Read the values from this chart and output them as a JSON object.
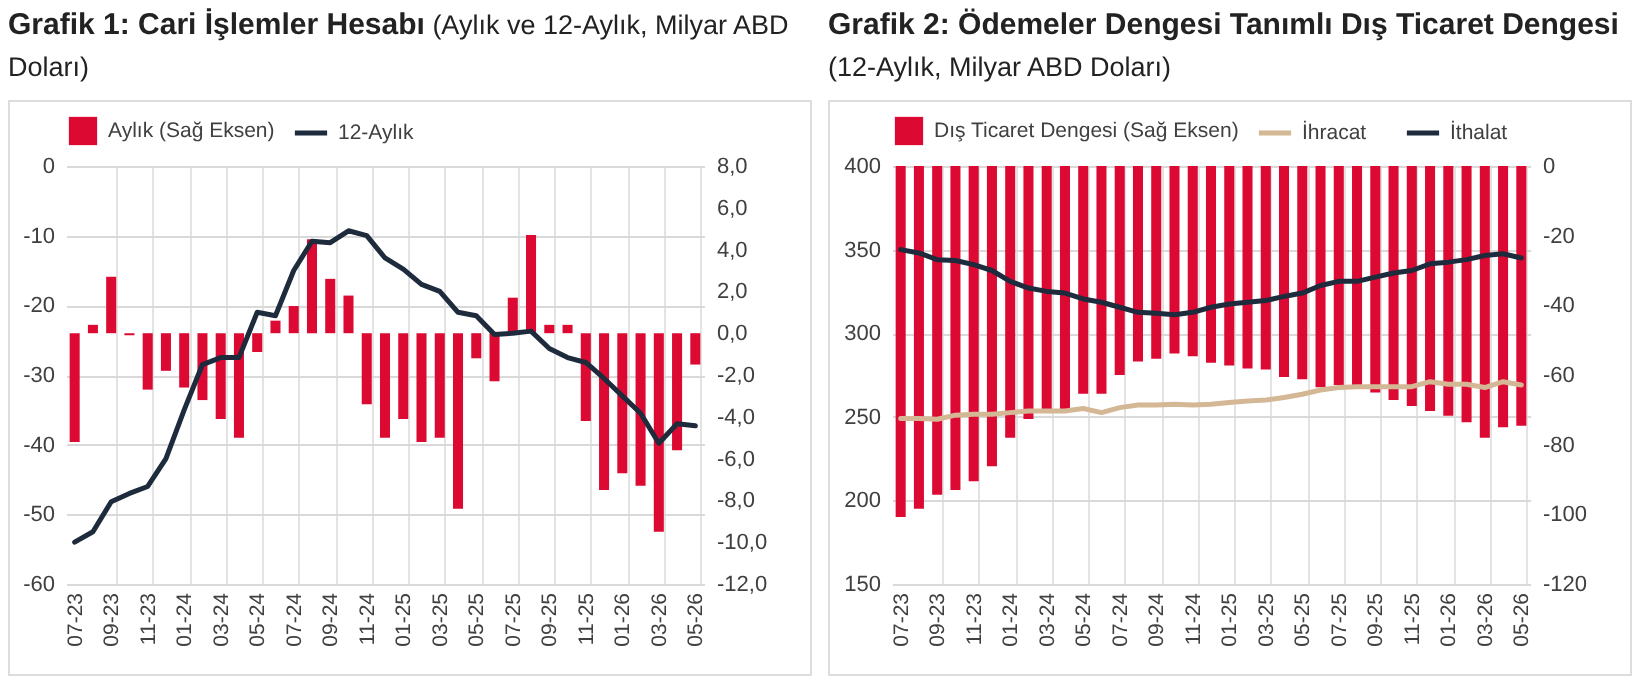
{
  "chart_data": [
    {
      "type": "bar",
      "title": "Grafik 1: Cari İşlemler Hesabı",
      "subtitle": "(Aylık ve 12-Aylık, Milyar ABD Doları)",
      "categories": [
        "07-23",
        null,
        "09-23",
        null,
        "11-23",
        null,
        "01-24",
        null,
        "03-24",
        null,
        "05-24",
        null,
        "07-24",
        null,
        "09-24",
        null,
        "11-24",
        null,
        "01-25",
        null,
        "03-25",
        null,
        "05-25",
        null,
        "07-25",
        null,
        "09-25",
        null,
        "11-25",
        null,
        "01-26",
        null,
        "03-26",
        null,
        "05-26"
      ],
      "series": [
        {
          "name": "Aylık (Sağ Eksen)",
          "color": "#dc0a32",
          "axis": "y2",
          "values": [
            -5.2,
            0.4,
            2.7,
            -0.1,
            -2.7,
            -1.8,
            -2.6,
            -3.2,
            -4.1,
            -5.0,
            -0.9,
            0.6,
            1.3,
            4.5,
            2.6,
            1.8,
            -3.4,
            -5.0,
            -4.1,
            -5.2,
            -5.0,
            -8.4,
            -1.2,
            -2.3,
            1.7,
            4.7,
            0.4,
            0.4,
            -4.2,
            -7.5,
            -6.7,
            -7.3,
            -9.5,
            -5.6,
            -1.5
          ]
        },
        {
          "name": "12-Aylık",
          "type": "line",
          "color": "#1e2b3c",
          "values": [
            -54,
            -52.5,
            -48.2,
            -47,
            -46,
            -42,
            -35,
            -28.5,
            -27.5,
            -27.5,
            -21,
            -21.5,
            -15,
            -10.8,
            -11,
            -9.3,
            -10,
            -13.2,
            -14.8,
            -17,
            -18,
            -21,
            -21.5,
            -24.2,
            -24,
            -23.7,
            -26.2,
            -27.5,
            -28.2,
            -30.5,
            -33,
            -35.5,
            -39.8,
            -37,
            -37.3
          ]
        }
      ],
      "ylim": [
        -60,
        0
      ],
      "yticks": [
        -60,
        -50,
        -40,
        -30,
        -20,
        -10,
        0
      ],
      "y2lim": [
        -12,
        8
      ],
      "y2ticks": [
        {
          "value": -12,
          "label": "-12,0"
        },
        {
          "value": -10,
          "label": "-10,0"
        },
        {
          "value": -8,
          "label": "-8,0"
        },
        {
          "value": -6,
          "label": "-6,0"
        },
        {
          "value": -4,
          "label": "-4,0"
        },
        {
          "value": -2,
          "label": "-2,0"
        },
        {
          "value": 0,
          "label": "0,0"
        },
        {
          "value": 2,
          "label": "2,0"
        },
        {
          "value": 4,
          "label": "4,0"
        },
        {
          "value": 6,
          "label": "6,0"
        },
        {
          "value": 8,
          "label": "8,0"
        }
      ],
      "grid": true,
      "legend": "top"
    },
    {
      "type": "bar",
      "title": "Grafik 2: Ödemeler Dengesi Tanımlı Dış Ticaret Dengesi",
      "subtitle": "(12-Aylık, Milyar ABD Doları)",
      "categories": [
        "07-23",
        null,
        "09-23",
        null,
        "11-23",
        null,
        "01-24",
        null,
        "03-24",
        null,
        "05-24",
        null,
        "07-24",
        null,
        "09-24",
        null,
        "11-24",
        null,
        "01-25",
        null,
        "03-25",
        null,
        "05-25",
        null,
        "07-25",
        null,
        "09-25",
        null,
        "11-25",
        null,
        "01-26",
        null,
        "03-26",
        null,
        "05-26"
      ],
      "series": [
        {
          "name": "Dış Ticaret Dengesi (Sağ Eksen)",
          "color": "#dc0a32",
          "axis": "y2",
          "values": [
            -100.8,
            -98.4,
            -94.4,
            -93,
            -90.5,
            -86.2,
            -78,
            -72.6,
            -70.3,
            -70.3,
            -65.4,
            -65.4,
            -60,
            -56.1,
            -55.3,
            -53.8,
            -54.6,
            -56.5,
            -57.3,
            -58.1,
            -58.4,
            -60.6,
            -61.2,
            -63.5,
            -62.9,
            -62.9,
            -65,
            -67.2,
            -68.9,
            -70.3,
            -71.7,
            -73.6,
            -78,
            -75,
            -74.6
          ]
        },
        {
          "name": "İhracat",
          "type": "line",
          "color": "#d4b896",
          "values": [
            249,
            249,
            248.5,
            251,
            251.5,
            251.5,
            252.5,
            253.5,
            253.5,
            253.5,
            255,
            252.5,
            255.5,
            257,
            257,
            257.5,
            257,
            257.5,
            258.5,
            259.5,
            260,
            261.5,
            263.5,
            266,
            267.5,
            268,
            268,
            268,
            268,
            271,
            269.5,
            269.5,
            267.5,
            271,
            269
          ]
        },
        {
          "name": "İthalat",
          "type": "line",
          "color": "#1e2b3c",
          "values": [
            350,
            348,
            344,
            343.5,
            341,
            337.5,
            331,
            327,
            325,
            324,
            320.5,
            318.5,
            315.5,
            312.5,
            312,
            311,
            312.5,
            315.5,
            317.5,
            318.5,
            319.5,
            322,
            324,
            328.5,
            331,
            331,
            333.5,
            336,
            337.5,
            341.5,
            342.5,
            344,
            346.5,
            347.5,
            345
          ]
        }
      ],
      "ylim": [
        150,
        400
      ],
      "yticks": [
        150,
        200,
        250,
        300,
        350,
        400
      ],
      "y2lim": [
        -120,
        0
      ],
      "y2ticks": [
        -120,
        -100,
        -80,
        -60,
        -40,
        -20,
        0
      ],
      "grid": true,
      "legend": "top"
    }
  ]
}
